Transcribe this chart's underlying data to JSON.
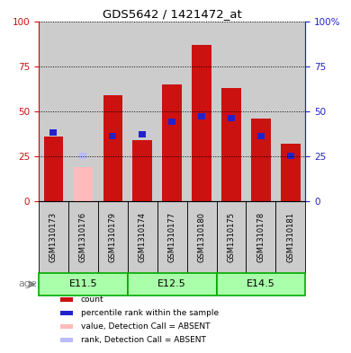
{
  "title": "GDS5642 / 1421472_at",
  "samples": [
    "GSM1310173",
    "GSM1310176",
    "GSM1310179",
    "GSM1310174",
    "GSM1310177",
    "GSM1310180",
    "GSM1310175",
    "GSM1310178",
    "GSM1310181"
  ],
  "count_values": [
    36,
    0,
    59,
    34,
    65,
    87,
    63,
    46,
    32
  ],
  "rank_values": [
    38,
    0,
    36,
    37,
    44,
    47,
    46,
    36,
    25
  ],
  "absent_count": [
    0,
    19,
    0,
    0,
    0,
    0,
    0,
    0,
    0
  ],
  "absent_rank": [
    0,
    25,
    0,
    0,
    0,
    0,
    0,
    0,
    0
  ],
  "absent_flags": [
    false,
    true,
    false,
    false,
    false,
    false,
    false,
    false,
    false
  ],
  "age_groups": [
    {
      "label": "E11.5",
      "start": 0,
      "end": 3
    },
    {
      "label": "E12.5",
      "start": 3,
      "end": 6
    },
    {
      "label": "E14.5",
      "start": 6,
      "end": 9
    }
  ],
  "ylim": [
    0,
    100
  ],
  "count_color": "#cc1111",
  "rank_color": "#2222cc",
  "absent_count_color": "#ffbbbb",
  "absent_rank_color": "#bbbbff",
  "bar_bg_color": "#cccccc",
  "age_bg_color": "#aaffaa",
  "age_border_color": "#00aa00",
  "left_tick_color": "#cc1111",
  "right_tick_color": "#2222cc",
  "bar_width": 0.65,
  "rank_bar_width": 0.25,
  "rank_bar_height": 3.5,
  "legend_items": [
    {
      "label": "count",
      "color": "#cc1111"
    },
    {
      "label": "percentile rank within the sample",
      "color": "#2222cc"
    },
    {
      "label": "value, Detection Call = ABSENT",
      "color": "#ffbbbb"
    },
    {
      "label": "rank, Detection Call = ABSENT",
      "color": "#bbbbff"
    }
  ]
}
